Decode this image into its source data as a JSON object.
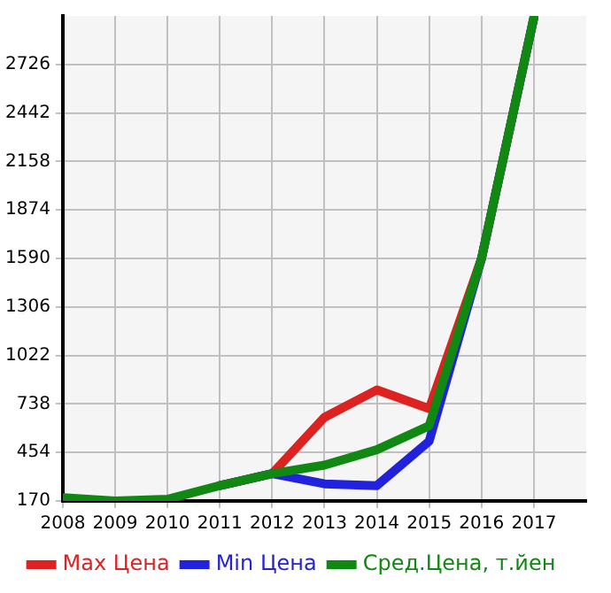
{
  "chart_data": {
    "type": "line",
    "x": [
      2008,
      2009,
      2010,
      2011,
      2012,
      2013,
      2014,
      2015,
      2016,
      2017
    ],
    "series": [
      {
        "name": "Max Цена",
        "color": "#dd2222",
        "values": [
          null,
          null,
          null,
          260,
          330,
          660,
          820,
          710,
          1590,
          3000
        ]
      },
      {
        "name": "Min Цена",
        "color": "#2222dd",
        "values": [
          null,
          null,
          null,
          260,
          330,
          270,
          260,
          520,
          1590,
          3000
        ]
      },
      {
        "name": "Сред.Цена, т.йен",
        "color": "#118811",
        "values": [
          190,
          170,
          180,
          260,
          330,
          380,
          470,
          610,
          1590,
          3000
        ]
      }
    ],
    "xlim": [
      2008,
      2018
    ],
    "xticks": [
      2008,
      2009,
      2010,
      2011,
      2012,
      2013,
      2014,
      2015,
      2016,
      2017
    ],
    "ylim": [
      170,
      3010
    ],
    "yticks": [
      170,
      454,
      738,
      1022,
      1306,
      1590,
      1874,
      2158,
      2442,
      2726
    ],
    "grid": true,
    "legend": "bottom",
    "marker": "none",
    "line_style": "solid"
  }
}
